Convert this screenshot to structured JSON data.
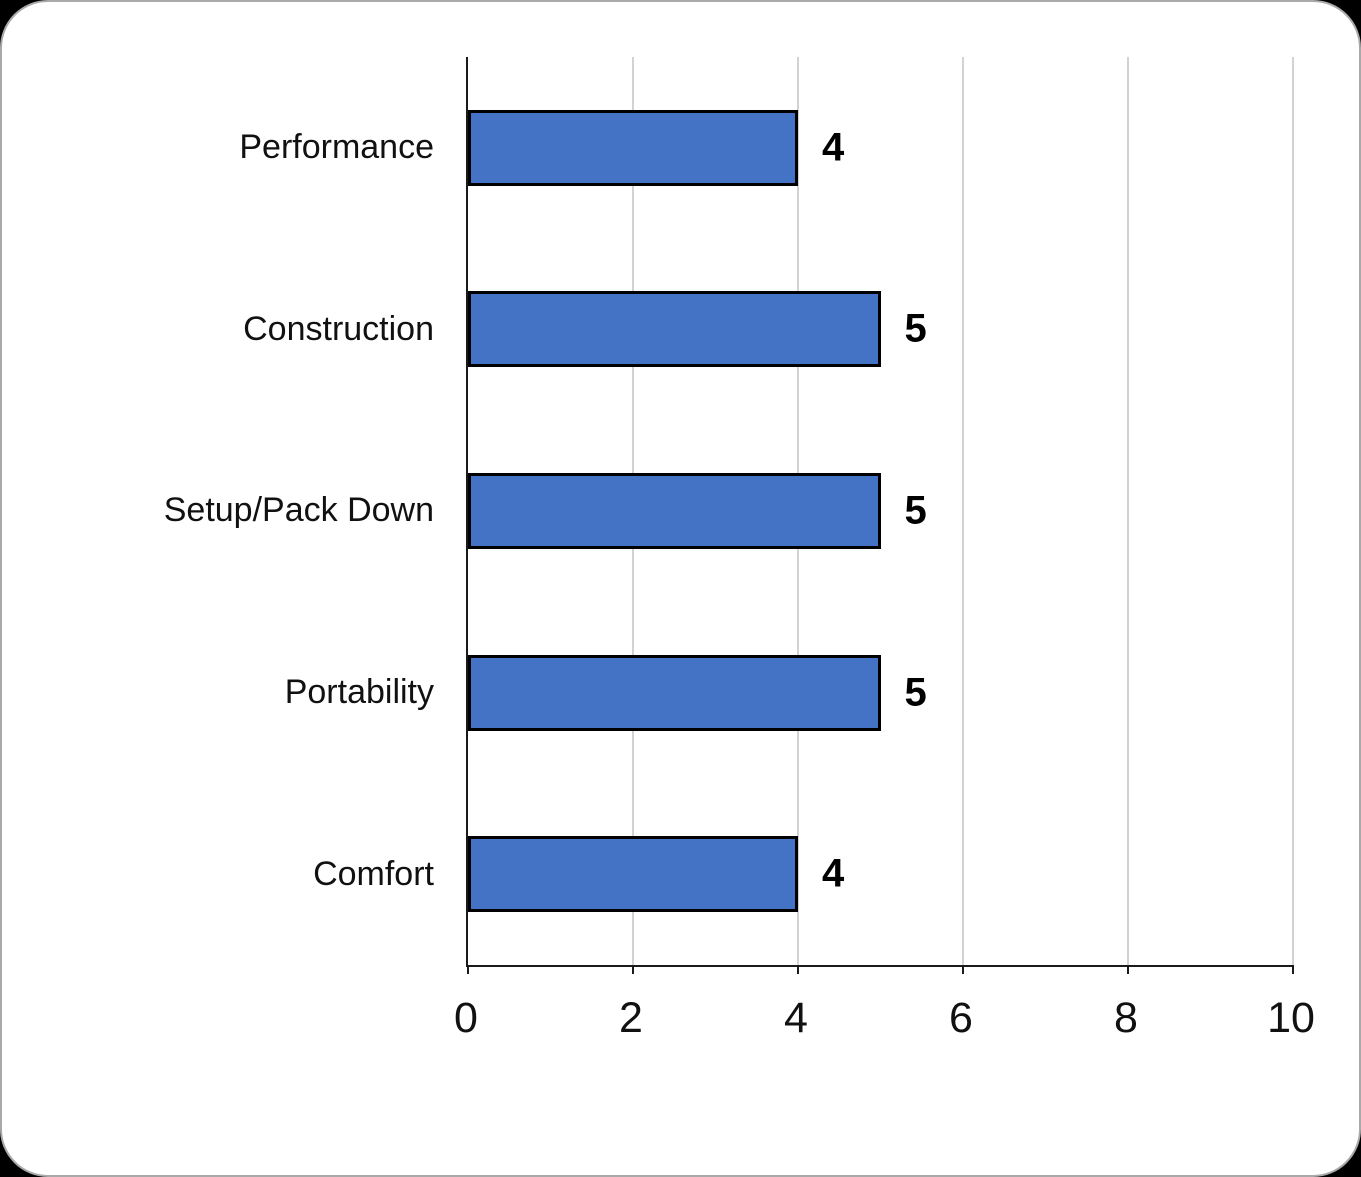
{
  "chart_data": {
    "type": "bar",
    "orientation": "horizontal",
    "categories": [
      "Performance",
      "Construction",
      "Setup/Pack Down",
      "Portability",
      "Comfort"
    ],
    "values": [
      4,
      5,
      5,
      5,
      4
    ],
    "title": "",
    "xlabel": "",
    "ylabel": "",
    "xlim": [
      0,
      10
    ],
    "x_ticks": [
      "0",
      "2",
      "4",
      "6",
      "8",
      "10"
    ],
    "grid": "vertical-gridlines-on",
    "legend": "none",
    "colors": {
      "bar_fill": "#4472c4",
      "bar_border": "#000000",
      "gridline": "#d2d2d2",
      "axis": "#1a1a1a",
      "text": "#111111",
      "card_background": "#ffffff",
      "outer_background": "#000000"
    }
  }
}
